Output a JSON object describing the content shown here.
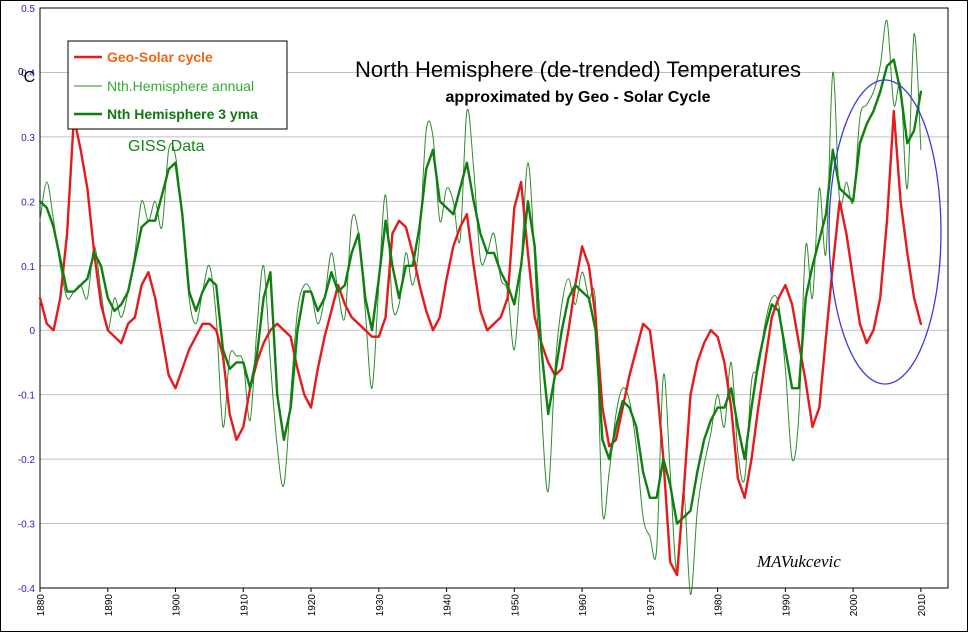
{
  "chart_data": {
    "type": "line",
    "title": "North Hemisphere (de-trended) Temperatures",
    "subtitle": "approximated by Geo - Solar Cycle",
    "annotation": "GISS  Data",
    "signature": "MAVukcevic",
    "ylabel_unit_sup": "0",
    "ylabel_unit": "C",
    "xlim": [
      1880,
      2014
    ],
    "ylim": [
      -0.4,
      0.5
    ],
    "xticks": [
      "1880",
      "1890",
      "1900",
      "1910",
      "1920",
      "1930",
      "1940",
      "1950",
      "1960",
      "1970",
      "1980",
      "1990",
      "2000",
      "2010"
    ],
    "yticks": [
      "0.5",
      "0.4",
      "0.3",
      "0.2",
      "0.1",
      "0",
      "-0.1",
      "-0.2",
      "-0.3",
      "-0.4"
    ],
    "grid": "horizontal",
    "legend_position": "top-left",
    "colors": {
      "geo_solar": "#e41a1c",
      "annual": "#2e8b2e",
      "yma3": "#0f7f0f",
      "ellipse": "#3a3ae0",
      "grid": "#c0c0c0",
      "ytick_text": "#1f1fbf"
    },
    "legend": [
      {
        "label": "Geo-Solar cycle",
        "series": "geo_solar"
      },
      {
        "label": "Nth.Hemisphere annual",
        "series": "annual"
      },
      {
        "label": "Nth Hemisphere 3 yma",
        "series": "yma3"
      }
    ],
    "series": [
      {
        "name": "Geo-Solar cycle",
        "key": "geo_solar",
        "x": [
          1880,
          1881,
          1882,
          1883,
          1884,
          1885,
          1886,
          1887,
          1888,
          1889,
          1890,
          1891,
          1892,
          1893,
          1894,
          1895,
          1896,
          1897,
          1898,
          1899,
          1900,
          1901,
          1902,
          1903,
          1904,
          1905,
          1906,
          1907,
          1908,
          1909,
          1910,
          1911,
          1912,
          1913,
          1914,
          1915,
          1916,
          1917,
          1918,
          1919,
          1920,
          1921,
          1922,
          1923,
          1924,
          1925,
          1926,
          1927,
          1928,
          1929,
          1930,
          1931,
          1932,
          1933,
          1934,
          1935,
          1936,
          1937,
          1938,
          1939,
          1940,
          1941,
          1942,
          1943,
          1944,
          1945,
          1946,
          1947,
          1948,
          1949,
          1950,
          1951,
          1952,
          1953,
          1954,
          1955,
          1956,
          1957,
          1958,
          1959,
          1960,
          1961,
          1962,
          1963,
          1964,
          1965,
          1966,
          1967,
          1968,
          1969,
          1970,
          1971,
          1972,
          1973,
          1974,
          1975,
          1976,
          1977,
          1978,
          1979,
          1980,
          1981,
          1982,
          1983,
          1984,
          1985,
          1986,
          1987,
          1988,
          1989,
          1990,
          1991,
          1992,
          1993,
          1994,
          1995,
          1996,
          1997,
          1998,
          1999,
          2000,
          2001,
          2002,
          2003,
          2004,
          2005,
          2006,
          2007,
          2008,
          2009,
          2010
        ],
        "values": [
          0.05,
          0.01,
          0.0,
          0.05,
          0.15,
          0.33,
          0.28,
          0.22,
          0.12,
          0.04,
          0.0,
          -0.01,
          -0.02,
          0.01,
          0.02,
          0.07,
          0.09,
          0.05,
          -0.01,
          -0.07,
          -0.09,
          -0.06,
          -0.03,
          -0.01,
          0.01,
          0.01,
          0.0,
          -0.04,
          -0.13,
          -0.17,
          -0.15,
          -0.09,
          -0.05,
          -0.02,
          0.0,
          0.01,
          0.0,
          -0.01,
          -0.06,
          -0.1,
          -0.12,
          -0.06,
          -0.01,
          0.03,
          0.07,
          0.04,
          0.02,
          0.01,
          0.0,
          -0.01,
          -0.01,
          0.02,
          0.15,
          0.17,
          0.16,
          0.12,
          0.07,
          0.03,
          0.0,
          0.02,
          0.08,
          0.13,
          0.16,
          0.18,
          0.1,
          0.03,
          0.0,
          0.01,
          0.02,
          0.05,
          0.19,
          0.23,
          0.12,
          0.02,
          -0.02,
          -0.05,
          -0.07,
          -0.06,
          0.0,
          0.07,
          0.13,
          0.1,
          0.02,
          -0.12,
          -0.18,
          -0.17,
          -0.12,
          -0.07,
          -0.03,
          0.01,
          0.0,
          -0.08,
          -0.2,
          -0.36,
          -0.38,
          -0.25,
          -0.1,
          -0.05,
          -0.02,
          0.0,
          -0.01,
          -0.05,
          -0.12,
          -0.23,
          -0.26,
          -0.2,
          -0.12,
          -0.05,
          0.02,
          0.05,
          0.07,
          0.04,
          -0.02,
          -0.08,
          -0.15,
          -0.12,
          -0.01,
          0.1,
          0.2,
          0.15,
          0.08,
          0.01,
          -0.02,
          0.0,
          0.05,
          0.17,
          0.34,
          0.2,
          0.12,
          0.05,
          0.01
        ]
      },
      {
        "name": "Nth.Hemisphere annual",
        "key": "annual",
        "x": [
          1880,
          1881,
          1882,
          1883,
          1884,
          1885,
          1886,
          1887,
          1888,
          1889,
          1890,
          1891,
          1892,
          1893,
          1894,
          1895,
          1896,
          1897,
          1898,
          1899,
          1900,
          1901,
          1902,
          1903,
          1904,
          1905,
          1906,
          1907,
          1908,
          1909,
          1910,
          1911,
          1912,
          1913,
          1914,
          1915,
          1916,
          1917,
          1918,
          1919,
          1920,
          1921,
          1922,
          1923,
          1924,
          1925,
          1926,
          1927,
          1928,
          1929,
          1930,
          1931,
          1932,
          1933,
          1934,
          1935,
          1936,
          1937,
          1938,
          1939,
          1940,
          1941,
          1942,
          1943,
          1944,
          1945,
          1946,
          1947,
          1948,
          1949,
          1950,
          1951,
          1952,
          1953,
          1954,
          1955,
          1956,
          1957,
          1958,
          1959,
          1960,
          1961,
          1962,
          1963,
          1964,
          1965,
          1966,
          1967,
          1968,
          1969,
          1970,
          1971,
          1972,
          1973,
          1974,
          1975,
          1976,
          1977,
          1978,
          1979,
          1980,
          1981,
          1982,
          1983,
          1984,
          1985,
          1986,
          1987,
          1988,
          1989,
          1990,
          1991,
          1992,
          1993,
          1994,
          1995,
          1996,
          1997,
          1998,
          1999,
          2000,
          2001,
          2002,
          2003,
          2004,
          2005,
          2006,
          2007,
          2008,
          2009,
          2010
        ],
        "values": [
          0.17,
          0.23,
          0.17,
          0.1,
          0.05,
          0.06,
          0.07,
          0.05,
          0.13,
          0.06,
          0.0,
          0.05,
          0.02,
          0.06,
          0.12,
          0.2,
          0.17,
          0.2,
          0.16,
          0.28,
          0.27,
          0.17,
          0.05,
          0.01,
          0.06,
          0.1,
          0.02,
          -0.15,
          -0.04,
          -0.04,
          -0.05,
          -0.14,
          0.0,
          0.1,
          -0.05,
          -0.18,
          -0.24,
          -0.1,
          0.03,
          0.07,
          0.06,
          0.01,
          0.05,
          0.12,
          0.06,
          0.02,
          0.17,
          0.15,
          0.03,
          -0.09,
          0.07,
          0.21,
          0.04,
          0.04,
          0.12,
          0.07,
          0.14,
          0.31,
          0.3,
          0.17,
          0.22,
          0.2,
          0.14,
          0.34,
          0.25,
          0.11,
          0.12,
          0.15,
          0.08,
          0.06,
          -0.03,
          0.1,
          0.26,
          0.11,
          -0.12,
          -0.25,
          -0.06,
          0.04,
          0.08,
          0.04,
          0.09,
          0.05,
          0.04,
          -0.28,
          -0.22,
          -0.13,
          -0.09,
          -0.11,
          -0.18,
          -0.29,
          -0.32,
          -0.34,
          -0.07,
          -0.22,
          -0.38,
          -0.25,
          -0.41,
          -0.28,
          -0.21,
          -0.16,
          -0.1,
          -0.15,
          -0.05,
          -0.19,
          -0.23,
          -0.08,
          -0.06,
          0.01,
          0.05,
          0.04,
          -0.06,
          -0.2,
          -0.13,
          0.13,
          0.05,
          0.22,
          0.12,
          0.4,
          0.2,
          0.23,
          0.2,
          0.33,
          0.35,
          0.37,
          0.41,
          0.48,
          0.35,
          0.38,
          0.22,
          0.46,
          0.28
        ]
      },
      {
        "name": "Nth Hemisphere 3 yma",
        "key": "yma3",
        "x": [
          1880,
          1881,
          1882,
          1883,
          1884,
          1885,
          1886,
          1887,
          1888,
          1889,
          1890,
          1891,
          1892,
          1893,
          1894,
          1895,
          1896,
          1897,
          1898,
          1899,
          1900,
          1901,
          1902,
          1903,
          1904,
          1905,
          1906,
          1907,
          1908,
          1909,
          1910,
          1911,
          1912,
          1913,
          1914,
          1915,
          1916,
          1917,
          1918,
          1919,
          1920,
          1921,
          1922,
          1923,
          1924,
          1925,
          1926,
          1927,
          1928,
          1929,
          1930,
          1931,
          1932,
          1933,
          1934,
          1935,
          1936,
          1937,
          1938,
          1939,
          1940,
          1941,
          1942,
          1943,
          1944,
          1945,
          1946,
          1947,
          1948,
          1949,
          1950,
          1951,
          1952,
          1953,
          1954,
          1955,
          1956,
          1957,
          1958,
          1959,
          1960,
          1961,
          1962,
          1963,
          1964,
          1965,
          1966,
          1967,
          1968,
          1969,
          1970,
          1971,
          1972,
          1973,
          1974,
          1975,
          1976,
          1977,
          1978,
          1979,
          1980,
          1981,
          1982,
          1983,
          1984,
          1985,
          1986,
          1987,
          1988,
          1989,
          1990,
          1991,
          1992,
          1993,
          1994,
          1995,
          1996,
          1997,
          1998,
          1999,
          2000,
          2001,
          2002,
          2003,
          2004,
          2005,
          2006,
          2007,
          2008,
          2009,
          2010
        ],
        "values": [
          0.2,
          0.19,
          0.16,
          0.11,
          0.06,
          0.06,
          0.07,
          0.08,
          0.12,
          0.1,
          0.05,
          0.03,
          0.04,
          0.06,
          0.11,
          0.16,
          0.17,
          0.17,
          0.21,
          0.25,
          0.26,
          0.18,
          0.06,
          0.03,
          0.06,
          0.08,
          0.07,
          -0.03,
          -0.06,
          -0.05,
          -0.05,
          -0.09,
          -0.04,
          0.05,
          0.09,
          -0.1,
          -0.17,
          -0.12,
          0.0,
          0.06,
          0.06,
          0.03,
          0.05,
          0.09,
          0.06,
          0.07,
          0.12,
          0.15,
          0.05,
          0.0,
          0.08,
          0.17,
          0.1,
          0.05,
          0.1,
          0.1,
          0.16,
          0.25,
          0.28,
          0.2,
          0.19,
          0.18,
          0.22,
          0.26,
          0.2,
          0.15,
          0.12,
          0.12,
          0.09,
          0.07,
          0.04,
          0.1,
          0.2,
          0.13,
          -0.03,
          -0.13,
          -0.07,
          0.0,
          0.05,
          0.07,
          0.06,
          0.05,
          0.0,
          -0.17,
          -0.2,
          -0.15,
          -0.11,
          -0.12,
          -0.15,
          -0.22,
          -0.26,
          -0.26,
          -0.2,
          -0.24,
          -0.3,
          -0.29,
          -0.28,
          -0.22,
          -0.17,
          -0.14,
          -0.12,
          -0.12,
          -0.09,
          -0.15,
          -0.2,
          -0.12,
          -0.05,
          0.0,
          0.04,
          0.03,
          -0.03,
          -0.09,
          -0.09,
          0.05,
          0.1,
          0.14,
          0.18,
          0.28,
          0.22,
          0.21,
          0.2,
          0.29,
          0.32,
          0.34,
          0.37,
          0.41,
          0.42,
          0.37,
          0.29,
          0.31,
          0.37
        ]
      }
    ]
  }
}
